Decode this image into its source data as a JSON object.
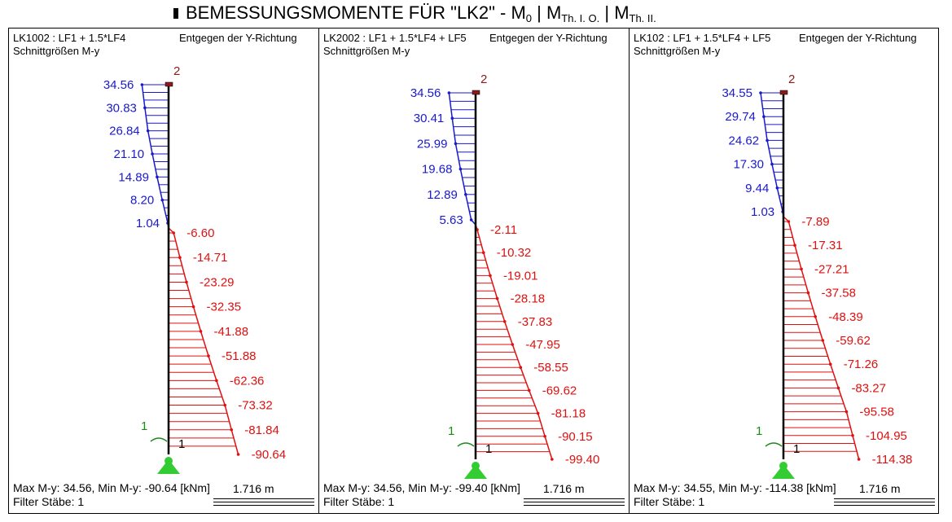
{
  "title": {
    "main": "BEMESSUNGSMOMENTE FÜR \"LK2\" -  M",
    "m0_sub": "0",
    "sep1": " |  M",
    "th1_sub": "Th. I. O.",
    "sep2": " |  M",
    "th2_sub": "Th. II."
  },
  "colors": {
    "positive": "#1a1acc",
    "negative": "#e01010",
    "member": "#000000",
    "support": "#33cc33",
    "node_label": "#8b1a1a",
    "member_label": "#1a8a1a"
  },
  "panels": [
    {
      "header": "LK1002 : LF1 + 1.5*LF4",
      "direction": "Entgegen der Y-Richtung",
      "subheader": "Schnittgrößen M-y",
      "top_node": "2",
      "bottom_node": "1",
      "member_label": "1",
      "footer": "Max M-y: 34.56, Min M-y: -90.64 [kNm]",
      "filter": "Filter Stäbe: 1",
      "scale": "1.716 m",
      "pos_values": [
        "34.56",
        "30.83",
        "26.84",
        "21.10",
        "14.89",
        "8.20",
        "1.04"
      ],
      "neg_values": [
        "-6.60",
        "-14.71",
        "-23.29",
        "-32.35",
        "-41.88",
        "-51.88",
        "-62.36",
        "-73.32",
        "-81.84",
        "-90.64"
      ]
    },
    {
      "header": "LK2002 : LF1 + 1.5*LF4 + LF5",
      "direction": "Entgegen der Y-Richtung",
      "subheader": "Schnittgrößen M-y",
      "top_node": "2",
      "bottom_node": "1",
      "member_label": "1",
      "footer": "Max M-y: 34.56, Min M-y: -99.40 [kNm]",
      "filter": "Filter Stäbe: 1",
      "scale": "1.716 m",
      "pos_values": [
        "34.56",
        "30.41",
        "25.99",
        "19.68",
        "12.89",
        "5.63"
      ],
      "neg_values": [
        "-2.11",
        "-10.32",
        "-19.01",
        "-28.18",
        "-37.83",
        "-47.95",
        "-58.55",
        "-69.62",
        "-81.18",
        "-90.15",
        "-99.40"
      ]
    },
    {
      "header": "LK102 : LF1 + 1.5*LF4 + LF5",
      "direction": "Entgegen der Y-Richtung",
      "subheader": "Schnittgrößen M-y",
      "top_node": "2",
      "bottom_node": "1",
      "member_label": "1",
      "footer": "Max M-y: 34.55, Min M-y: -114.38 [kNm]",
      "filter": "Filter Stäbe: 1",
      "scale": "1.716 m",
      "pos_values": [
        "34.55",
        "29.74",
        "24.62",
        "17.30",
        "9.44",
        "1.03"
      ],
      "neg_values": [
        "-7.89",
        "-17.31",
        "-27.21",
        "-37.58",
        "-48.39",
        "-59.62",
        "-71.26",
        "-83.27",
        "-95.58",
        "-104.95",
        "-114.38"
      ]
    }
  ]
}
